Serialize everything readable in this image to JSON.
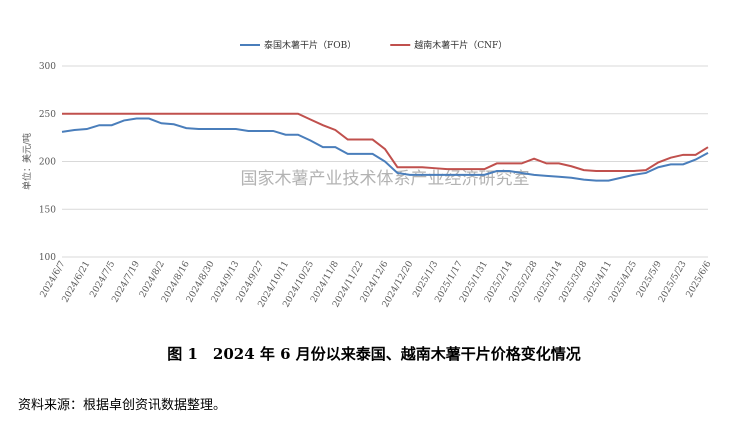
{
  "chart_data": {
    "type": "line",
    "watermark": "国家木薯产业技术体系产业经济研究室",
    "y_label": "单位：美元/吨",
    "categories": [
      "2024/6/7",
      null,
      "2024/6/21",
      null,
      "2024/7/5",
      null,
      "2024/7/19",
      null,
      "2024/8/2",
      null,
      "2024/8/16",
      null,
      "2024/8/30",
      null,
      "2024/9/13",
      null,
      "2024/9/27",
      null,
      "2024/10/11",
      null,
      "2024/10/25",
      null,
      "2024/11/8",
      null,
      "2024/11/22",
      null,
      "2024/12/6",
      null,
      "2024/12/20",
      null,
      "2025/1/3",
      null,
      "2025/1/17",
      null,
      "2025/1/31",
      null,
      "2025/2/14",
      null,
      "2025/2/28",
      null,
      "2025/3/14",
      null,
      "2025/3/28",
      null,
      "2025/4/11",
      null,
      "2025/4/25",
      null,
      "2025/5/9",
      null,
      "2025/5/23",
      null,
      "2025/6/6"
    ],
    "series": [
      {
        "name": "泰国木薯干片（FOB）",
        "color": "#4a7ebb",
        "values": [
          231,
          233,
          234,
          238,
          238,
          243,
          245,
          245,
          240,
          239,
          235,
          234,
          234,
          234,
          234,
          232,
          232,
          232,
          228,
          228,
          222,
          215,
          215,
          208,
          208,
          208,
          200,
          188,
          186,
          186,
          186,
          186,
          186,
          186,
          186,
          190,
          190,
          188,
          186,
          185,
          184,
          183,
          181,
          180,
          180,
          183,
          186,
          188,
          194,
          197,
          197,
          202,
          209
        ]
      },
      {
        "name": "越南木薯干片（CNF）",
        "color": "#c0504d",
        "values": [
          250,
          250,
          250,
          250,
          250,
          250,
          250,
          250,
          250,
          250,
          250,
          250,
          250,
          250,
          250,
          250,
          250,
          250,
          250,
          250,
          244,
          238,
          233,
          223,
          223,
          223,
          213,
          194,
          194,
          194,
          193,
          192,
          192,
          192,
          192,
          198,
          198,
          198,
          203,
          198,
          198,
          195,
          191,
          190,
          190,
          190,
          190,
          191,
          199,
          204,
          207,
          207,
          215
        ]
      }
    ],
    "ylim": [
      100,
      300
    ],
    "yticks": [
      100,
      150,
      200,
      250,
      300
    ],
    "grid": true,
    "legend": "top"
  },
  "caption": "图 1　2024 年 6 月份以来泰国、越南木薯干片价格变化情况",
  "source": "资料来源：根据卓创资讯数据整理。"
}
